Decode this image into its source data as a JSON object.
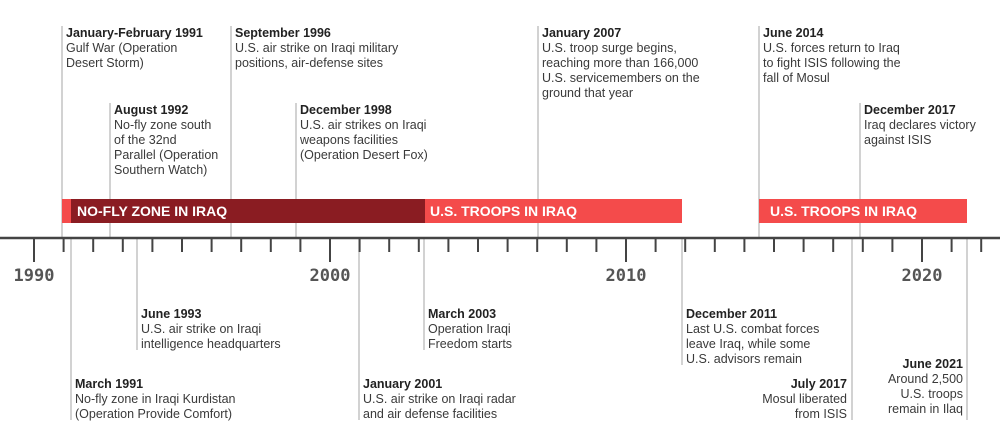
{
  "axis": {
    "years": [
      "1990",
      "2000",
      "2010",
      "2020"
    ]
  },
  "bands": [
    {
      "id": "nofly",
      "label": "NO-FLY ZONE IN IRAQ",
      "color": "#8a1c22"
    },
    {
      "id": "troops1",
      "label": "U.S. TROOPS IN IRAQ",
      "color": "#f44b4b"
    },
    {
      "id": "troops2",
      "label": "U.S. TROOPS IN IRAQ",
      "color": "#f44b4b"
    }
  ],
  "events": [
    {
      "id": "gulf-war",
      "date": "January-February 1991",
      "lines": [
        "Gulf War (Operation",
        "Desert Storm)"
      ]
    },
    {
      "id": "aug-1992",
      "date": "August 1992",
      "lines": [
        "No-fly zone south",
        "of the 32nd",
        "Parallel (Operation",
        "Southern Watch)"
      ]
    },
    {
      "id": "sep-1996",
      "date": "September 1996",
      "lines": [
        "U.S. air strike on Iraqi military",
        "positions, air-defense sites"
      ]
    },
    {
      "id": "dec-1998",
      "date": "December 1998",
      "lines": [
        "U.S. air strikes on Iraqi",
        "weapons facilities",
        "(Operation Desert Fox)"
      ]
    },
    {
      "id": "jan-2007",
      "date": "January 2007",
      "lines": [
        "U.S. troop surge begins,",
        "reaching more than 166,000",
        "U.S. servicemembers on the",
        "ground that year"
      ]
    },
    {
      "id": "jun-2014",
      "date": "June 2014",
      "lines": [
        "U.S. forces return to Iraq",
        "to fight ISIS following the",
        "fall of Mosul"
      ]
    },
    {
      "id": "dec-2017",
      "date": "December 2017",
      "lines": [
        "Iraq declares victory",
        "against ISIS"
      ]
    },
    {
      "id": "jun-1993",
      "date": "June 1993",
      "lines": [
        "U.S. air strike on Iraqi",
        "intelligence headquarters"
      ]
    },
    {
      "id": "mar-1991",
      "date": "March 1991",
      "lines": [
        "No-fly zone in Iraqi Kurdistan",
        "(Operation Provide Comfort)"
      ]
    },
    {
      "id": "jan-2001",
      "date": "January 2001",
      "lines": [
        "U.S. air strike on Iraqi radar",
        "and air defense facilities"
      ]
    },
    {
      "id": "mar-2003",
      "date": "March 2003",
      "lines": [
        "Operation Iraqi",
        "Freedom starts"
      ]
    },
    {
      "id": "dec-2011",
      "date": "December 2011",
      "lines": [
        "Last U.S. combat forces",
        "leave Iraq, while some",
        "U.S. advisors remain"
      ]
    },
    {
      "id": "jul-2017",
      "date": "July 2017",
      "lines": [
        "Mosul liberated",
        "from ISIS"
      ]
    },
    {
      "id": "jun-2021",
      "date": "June 2021",
      "lines": [
        "Around 2,500",
        "U.S. troops",
        "remain in Ilaq"
      ]
    }
  ]
}
